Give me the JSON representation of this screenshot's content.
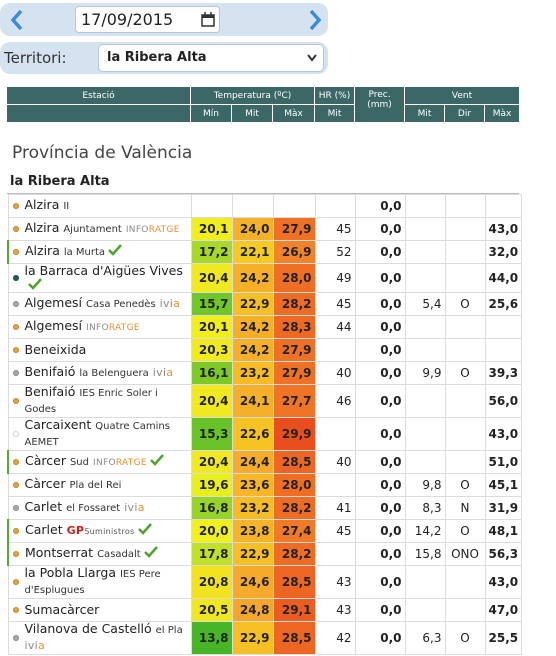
{
  "toolbar": {
    "date": "17/09/2015"
  },
  "filter": {
    "label": "Territori:",
    "value": "la Ribera Alta"
  },
  "table": {
    "groups": [
      "Estació",
      "Temperatura (ºC)",
      "HR (%)",
      "Prec. (mm)",
      "Vent"
    ],
    "subs": [
      "Mín",
      "Mit",
      "Màx",
      "Mit",
      "Mit",
      "Dir",
      "Màx"
    ],
    "section": "Província de València",
    "group": "la Ribera Alta",
    "rows": [
      {
        "name": "Alzira",
        "sub": "II",
        "dot": "#e6a43c",
        "cells": [
          null,
          null,
          null,
          null,
          "0,0",
          null,
          null,
          null
        ]
      },
      {
        "name": "Alzira",
        "sub": "Ajuntament",
        "tag": [
          "INFO",
          "RATGE"
        ],
        "tag_colors": [
          "#8a8a8a",
          "#e8912e"
        ],
        "dot": "#e6a43c",
        "cells": [
          "20,1",
          "24,0",
          "27,9",
          "45",
          "0,0",
          null,
          null,
          "43,0"
        ]
      },
      {
        "name": "Alzira",
        "sub": "la Murta",
        "check": true,
        "border": true,
        "dot": "#e6a43c",
        "cells": [
          "17,2",
          "22,1",
          "26,9",
          "52",
          "0,0",
          null,
          null,
          "32,0"
        ]
      },
      {
        "name": "la Barraca d'Aigües Vives",
        "check": true,
        "dot": "#1f5c5c",
        "cells": [
          "20,4",
          "24,2",
          "28,0",
          "49",
          "0,0",
          null,
          null,
          "44,0"
        ]
      },
      {
        "name": "Algemesí",
        "sub": "Casa Penedès",
        "tag": [
          "ivi",
          "a"
        ],
        "tag_colors": [
          "#8a8a8a",
          "#e8912e"
        ],
        "dot": "#a8a8a8",
        "cells": [
          "15,7",
          "22,9",
          "28,2",
          "45",
          "0,0",
          "5,4",
          "O",
          "25,6"
        ]
      },
      {
        "name": "Algemesí",
        "tag": [
          "INFO",
          "RATGE"
        ],
        "tag_colors": [
          "#8a8a8a",
          "#e8912e"
        ],
        "dot": "#e6a43c",
        "cells": [
          "20,1",
          "24,2",
          "28,3",
          "44",
          "0,0",
          null,
          null,
          null
        ]
      },
      {
        "name": "Beneixida",
        "dot": "#e6a43c",
        "cells": [
          "20,3",
          "24,2",
          "27,9",
          null,
          "0,0",
          null,
          null,
          null
        ]
      },
      {
        "name": "Benifaió",
        "sub": "la Belenguera",
        "tag": [
          "ivi",
          "a"
        ],
        "tag_colors": [
          "#8a8a8a",
          "#e8912e"
        ],
        "dot": "#a8a8a8",
        "cells": [
          "16,1",
          "23,2",
          "27,9",
          "40",
          "0,0",
          "9,9",
          "O",
          "39,3"
        ]
      },
      {
        "name": "Benifaió",
        "sub": "IES Enric Soler i Godes",
        "dot": "#e6a43c",
        "cells": [
          "20,4",
          "24,1",
          "27,7",
          "46",
          "0,0",
          null,
          null,
          "56,0"
        ]
      },
      {
        "name": "Carcaixent",
        "sub": "Quatre Camins AEMET",
        "dot": "#ffffff",
        "cells": [
          "15,3",
          "22,6",
          "29,9",
          null,
          "0,0",
          null,
          null,
          "43,0"
        ]
      },
      {
        "name": "Càrcer",
        "sub": "Sud",
        "tag": [
          "INFO",
          "RATGE"
        ],
        "tag_colors": [
          "#8a8a8a",
          "#e8912e"
        ],
        "check": true,
        "border": true,
        "dot": "#e6a43c",
        "cells": [
          "20,4",
          "24,4",
          "28,5",
          "40",
          "0,0",
          null,
          null,
          "51,0"
        ]
      },
      {
        "name": "Càrcer",
        "sub": "Pla del Rei",
        "dot": "#e6a43c",
        "cells": [
          "19,6",
          "23,6",
          "28,0",
          null,
          "0,0",
          "9,8",
          "O",
          "45,1"
        ]
      },
      {
        "name": "Carlet",
        "sub": "el Fossaret",
        "tag": [
          "ivi",
          "a"
        ],
        "tag_colors": [
          "#8a8a8a",
          "#e8912e"
        ],
        "dot": "#a8a8a8",
        "cells": [
          "16,8",
          "23,2",
          "28,2",
          "41",
          "0,0",
          "8,3",
          "N",
          "31,9"
        ]
      },
      {
        "name": "Carlet",
        "tag": [
          "GP",
          "Suministros"
        ],
        "tag_colors": [
          "#c8231e",
          "#555555"
        ],
        "check": true,
        "border": true,
        "dot": "#e6a43c",
        "cells": [
          "20,0",
          "23,8",
          "27,4",
          "45",
          "0,0",
          "14,2",
          "O",
          "48,1"
        ]
      },
      {
        "name": "Montserrat",
        "sub": "Casadalt",
        "check": true,
        "border": true,
        "dot": "#e6a43c",
        "cells": [
          "17,8",
          "22,9",
          "28,2",
          null,
          "0,0",
          "15,8",
          "ONO",
          "56,3"
        ]
      },
      {
        "name": "la Pobla Llarga",
        "sub": "IES Pere d'Esplugues",
        "dot": "#e6a43c",
        "cells": [
          "20,8",
          "24,6",
          "28,5",
          "43",
          "0,0",
          null,
          null,
          "43,0"
        ]
      },
      {
        "name": "Sumacàrcer",
        "dot": "#e6a43c",
        "cells": [
          "20,5",
          "24,8",
          "29,1",
          "43",
          "0,0",
          null,
          null,
          "47,0"
        ]
      },
      {
        "name": "Vilanova de Castelló",
        "sub": "el Pla",
        "tag": [
          "ivi",
          "a"
        ],
        "tag_colors": [
          "#8a8a8a",
          "#e8912e"
        ],
        "dot": "#a8a8a8",
        "cells": [
          "13,8",
          "22,9",
          "28,5",
          "42",
          "0,0",
          "6,3",
          "O",
          "25,5"
        ]
      }
    ]
  }
}
